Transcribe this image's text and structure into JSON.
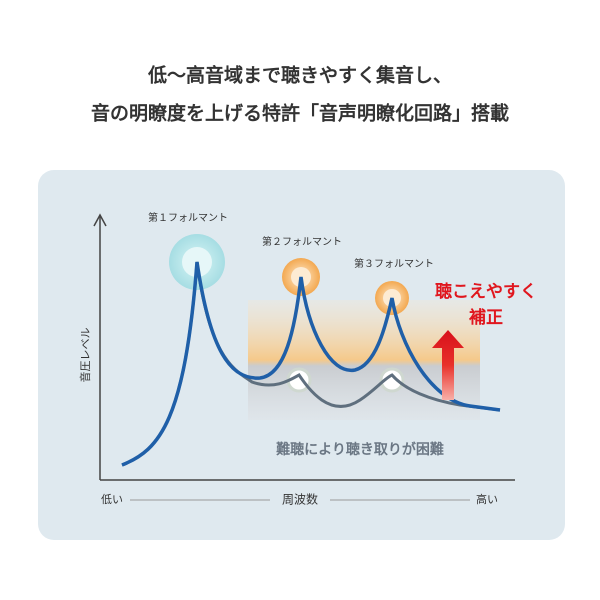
{
  "header": {
    "line1": "低〜高音域まで聴きやすく集音し、",
    "line2": "音の明瞭度を上げる特許「音声明瞭化回路」搭載"
  },
  "diagram": {
    "y_axis_label": "音圧レベル",
    "x_axis": {
      "low": "低い",
      "label": "周波数",
      "high": "高い"
    },
    "formants": [
      "第１フォルマント",
      "第２フォルマント",
      "第３フォルマント"
    ],
    "correction": {
      "line1": "聴こえやすく",
      "line2": "補正"
    },
    "hearing_loss_note": "難聴により聴き取りが困難"
  }
}
